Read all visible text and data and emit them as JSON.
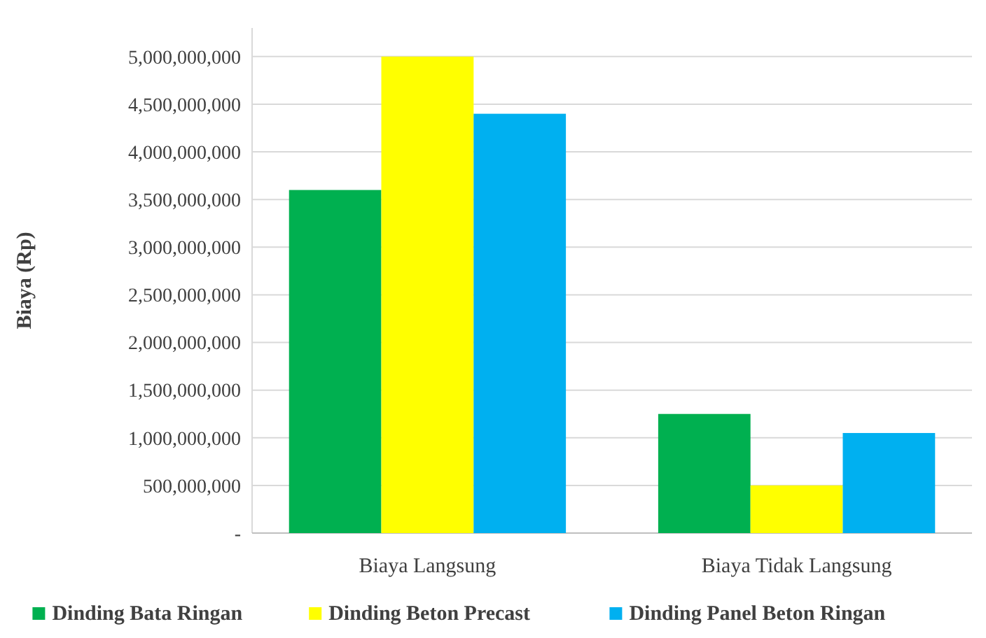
{
  "chart_data": {
    "type": "bar",
    "ylabel": "Biaya (Rp)",
    "categories": [
      "Biaya Langsung",
      "Biaya Tidak Langsung"
    ],
    "series": [
      {
        "name": "Dinding Bata Ringan",
        "color": "#00b050",
        "values": [
          3600000000,
          1250000000
        ]
      },
      {
        "name": "Dinding Beton Precast",
        "color": "#ffff00",
        "values": [
          5000000000,
          500000000
        ]
      },
      {
        "name": "Dinding Panel Beton Ringan",
        "color": "#00b0f0",
        "values": [
          4400000000,
          1050000000
        ]
      }
    ],
    "ylim": [
      0,
      5300000000
    ],
    "yticks": [
      {
        "value": 0,
        "label": "-"
      },
      {
        "value": 500000000,
        "label": "500,000,000"
      },
      {
        "value": 1000000000,
        "label": "1,000,000,000"
      },
      {
        "value": 1500000000,
        "label": "1,500,000,000"
      },
      {
        "value": 2000000000,
        "label": "2,000,000,000"
      },
      {
        "value": 2500000000,
        "label": "2,500,000,000"
      },
      {
        "value": 3000000000,
        "label": "3,000,000,000"
      },
      {
        "value": 3500000000,
        "label": "3,500,000,000"
      },
      {
        "value": 4000000000,
        "label": "4,000,000,000"
      },
      {
        "value": 4500000000,
        "label": "4,500,000,000"
      },
      {
        "value": 5000000000,
        "label": "5,000,000,000"
      }
    ],
    "grid": "y",
    "legend": "bottom"
  }
}
